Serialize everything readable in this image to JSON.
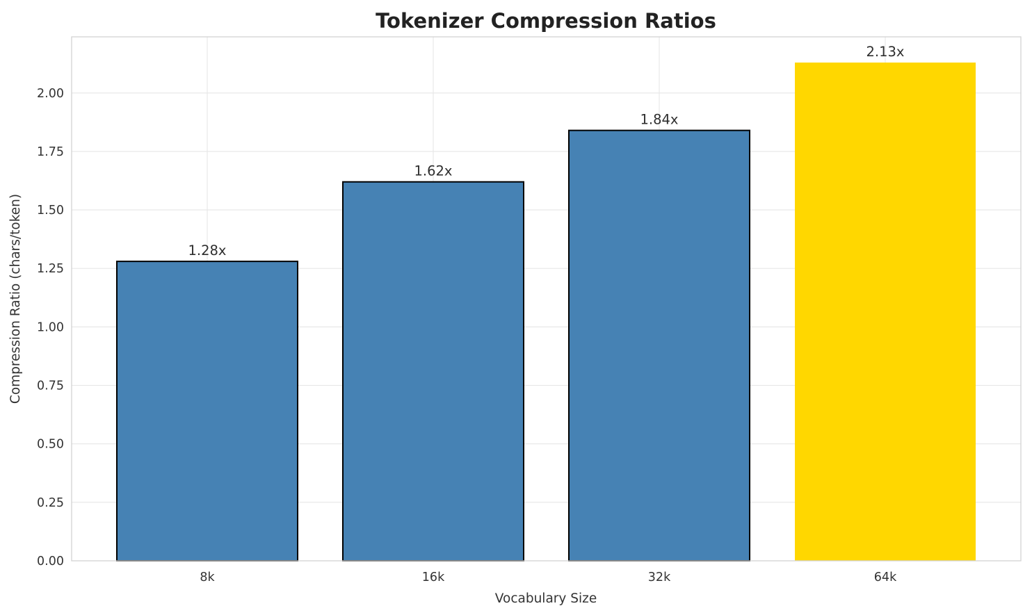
{
  "chart_data": {
    "type": "bar",
    "title": "Tokenizer Compression Ratios",
    "xlabel": "Vocabulary Size",
    "ylabel": "Compression Ratio (chars/token)",
    "categories": [
      "8k",
      "16k",
      "32k",
      "64k"
    ],
    "values": [
      1.28,
      1.62,
      1.84,
      2.13
    ],
    "bar_labels": [
      "1.28x",
      "1.62x",
      "1.84x",
      "2.13x"
    ],
    "yticks": [
      0,
      0.25,
      0.5,
      0.75,
      1.0,
      1.25,
      1.5,
      1.75,
      2.0
    ],
    "ytick_labels": [
      "0.00",
      "0.25",
      "0.50",
      "0.75",
      "1.00",
      "1.25",
      "1.50",
      "1.75",
      "2.00"
    ],
    "ylim": [
      0,
      2.24
    ],
    "grid": true,
    "legend": null,
    "highlight_index": 3,
    "colors": {
      "bar_default": "#4682B4",
      "bar_highlight": "#FFD700",
      "bar_edge": "#000000",
      "grid": "#e6e6e6",
      "spine": "#d2d2d2",
      "text": "#333333",
      "title": "#222222",
      "background": "#ffffff"
    }
  }
}
